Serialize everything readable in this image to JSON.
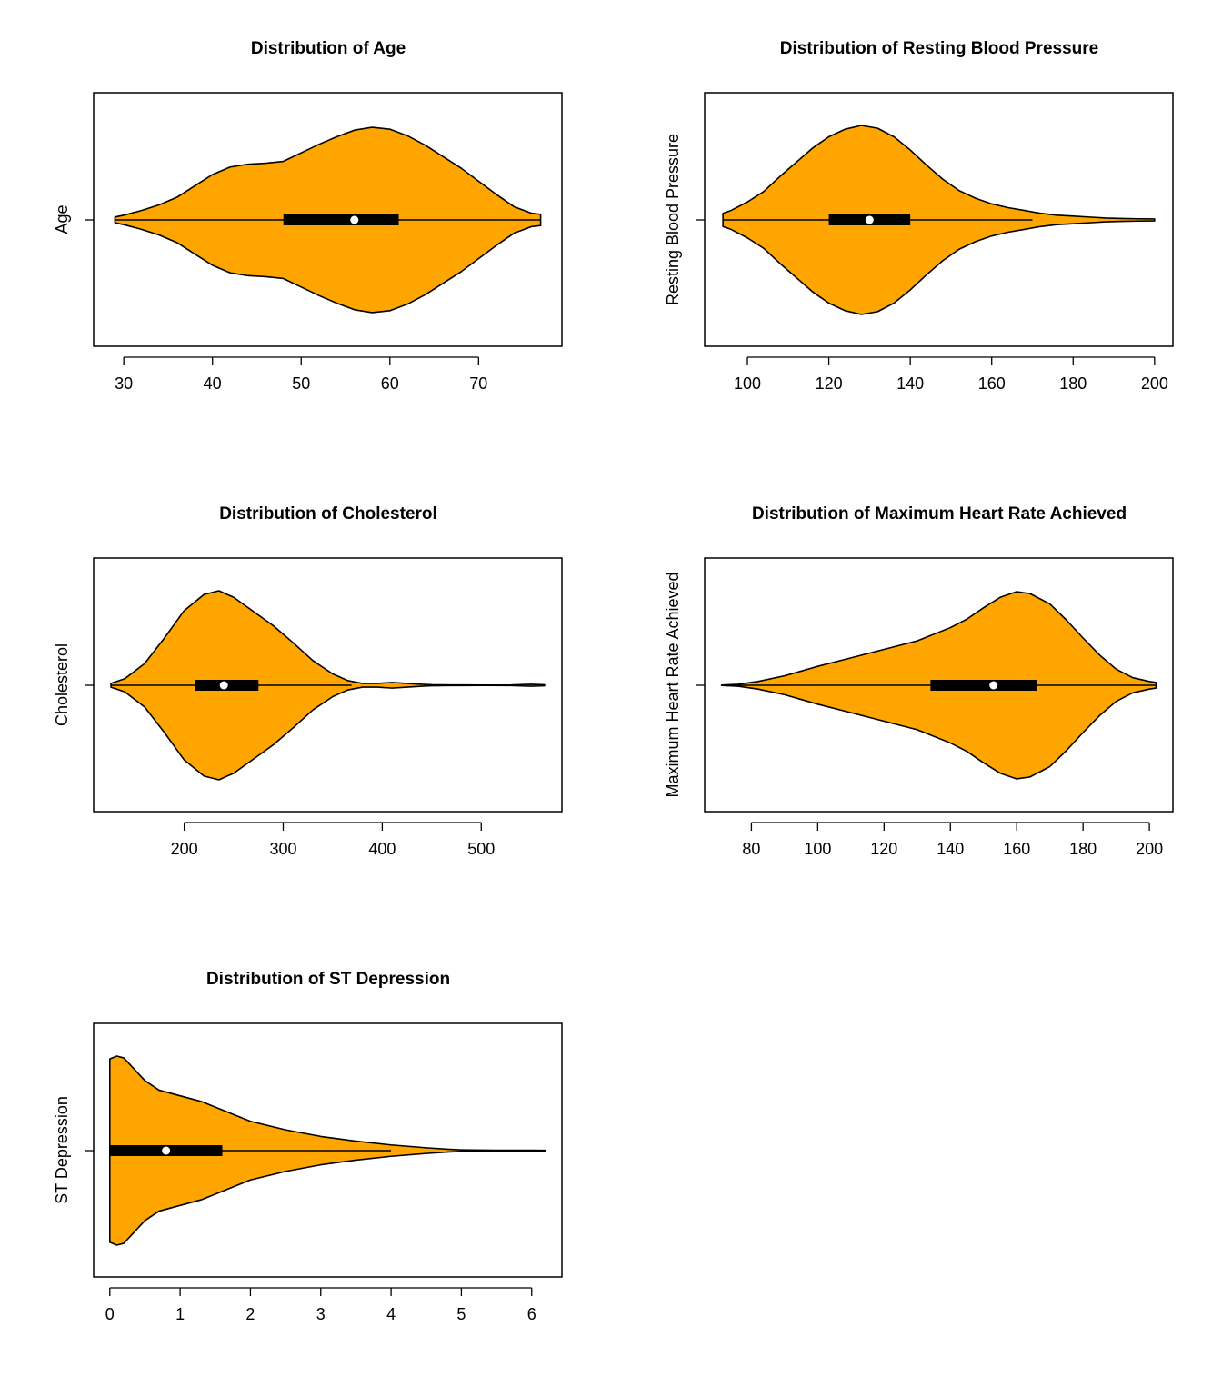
{
  "chart_data": [
    {
      "type": "violin",
      "title": "Distribution of Age",
      "xlabel": "",
      "ylabel": "Age",
      "fill_color": "#FFA500",
      "xlim": [
        26.6,
        79.4
      ],
      "ticks": [
        30,
        40,
        50,
        60,
        70
      ],
      "range": [
        29,
        77
      ],
      "box": {
        "q1": 48,
        "median": 56,
        "q3": 61
      },
      "whiskers": [
        29,
        77
      ],
      "density": [
        [
          29,
          0.03
        ],
        [
          30,
          0.05
        ],
        [
          32,
          0.1
        ],
        [
          34,
          0.16
        ],
        [
          36,
          0.24
        ],
        [
          38,
          0.36
        ],
        [
          40,
          0.48
        ],
        [
          42,
          0.56
        ],
        [
          44,
          0.59
        ],
        [
          46,
          0.6
        ],
        [
          48,
          0.62
        ],
        [
          50,
          0.71
        ],
        [
          52,
          0.8
        ],
        [
          54,
          0.88
        ],
        [
          56,
          0.95
        ],
        [
          58,
          0.98
        ],
        [
          60,
          0.96
        ],
        [
          62,
          0.89
        ],
        [
          64,
          0.79
        ],
        [
          66,
          0.67
        ],
        [
          68,
          0.55
        ],
        [
          70,
          0.41
        ],
        [
          72,
          0.27
        ],
        [
          74,
          0.14
        ],
        [
          76,
          0.07
        ],
        [
          77,
          0.06
        ]
      ]
    },
    {
      "type": "violin",
      "title": "Distribution of Resting Blood Pressure",
      "xlabel": "",
      "ylabel": "Resting Blood Pressure",
      "fill_color": "#FFA500",
      "xlim": [
        89.5,
        204.5
      ],
      "ticks": [
        100,
        120,
        140,
        160,
        180,
        200
      ],
      "range": [
        94,
        200
      ],
      "box": {
        "q1": 120,
        "median": 130,
        "q3": 140
      },
      "whiskers": [
        94,
        170
      ],
      "density": [
        [
          94,
          0.07
        ],
        [
          96,
          0.1
        ],
        [
          100,
          0.19
        ],
        [
          104,
          0.3
        ],
        [
          108,
          0.46
        ],
        [
          112,
          0.61
        ],
        [
          116,
          0.76
        ],
        [
          120,
          0.88
        ],
        [
          124,
          0.96
        ],
        [
          128,
          1.0
        ],
        [
          132,
          0.97
        ],
        [
          136,
          0.88
        ],
        [
          140,
          0.74
        ],
        [
          144,
          0.58
        ],
        [
          148,
          0.43
        ],
        [
          152,
          0.31
        ],
        [
          156,
          0.23
        ],
        [
          160,
          0.17
        ],
        [
          164,
          0.13
        ],
        [
          168,
          0.1
        ],
        [
          172,
          0.07
        ],
        [
          176,
          0.05
        ],
        [
          180,
          0.04
        ],
        [
          184,
          0.03
        ],
        [
          188,
          0.02
        ],
        [
          192,
          0.015
        ],
        [
          196,
          0.012
        ],
        [
          200,
          0.01
        ]
      ]
    },
    {
      "type": "violin",
      "title": "Distribution of Cholesterol",
      "xlabel": "",
      "ylabel": "Cholesterol",
      "fill_color": "#FFA500",
      "xlim": [
        108.5,
        581.5
      ],
      "ticks": [
        200,
        300,
        400,
        500
      ],
      "range": [
        126,
        564
      ],
      "box": {
        "q1": 211,
        "median": 240,
        "q3": 275
      },
      "whiskers": [
        126,
        369
      ],
      "density": [
        [
          126,
          0.02
        ],
        [
          140,
          0.07
        ],
        [
          160,
          0.23
        ],
        [
          180,
          0.5
        ],
        [
          200,
          0.79
        ],
        [
          220,
          0.96
        ],
        [
          235,
          1.0
        ],
        [
          250,
          0.93
        ],
        [
          270,
          0.78
        ],
        [
          290,
          0.63
        ],
        [
          310,
          0.45
        ],
        [
          330,
          0.26
        ],
        [
          350,
          0.12
        ],
        [
          365,
          0.05
        ],
        [
          380,
          0.02
        ],
        [
          395,
          0.02
        ],
        [
          410,
          0.03
        ],
        [
          425,
          0.02
        ],
        [
          440,
          0.01
        ],
        [
          450,
          0.005
        ],
        [
          470,
          0.003
        ],
        [
          500,
          0.002
        ],
        [
          530,
          0.003
        ],
        [
          550,
          0.01
        ],
        [
          564,
          0.005
        ]
      ]
    },
    {
      "type": "violin",
      "title": "Distribution of Maximum Heart Rate Achieved",
      "xlabel": "",
      "ylabel": "Maximum Heart Rate Achieved",
      "fill_color": "#FFA500",
      "xlim": [
        65.9,
        207.1
      ],
      "ticks": [
        80,
        100,
        120,
        140,
        160,
        180,
        200
      ],
      "range": [
        71,
        202
      ],
      "box": {
        "q1": 134,
        "median": 153,
        "q3": 166
      },
      "whiskers": [
        71,
        202
      ],
      "density": [
        [
          71,
          0.002
        ],
        [
          76,
          0.01
        ],
        [
          82,
          0.04
        ],
        [
          90,
          0.1
        ],
        [
          100,
          0.2
        ],
        [
          110,
          0.29
        ],
        [
          120,
          0.38
        ],
        [
          130,
          0.47
        ],
        [
          140,
          0.61
        ],
        [
          145,
          0.7
        ],
        [
          150,
          0.82
        ],
        [
          155,
          0.93
        ],
        [
          160,
          0.99
        ],
        [
          164,
          0.97
        ],
        [
          170,
          0.86
        ],
        [
          175,
          0.69
        ],
        [
          180,
          0.5
        ],
        [
          185,
          0.32
        ],
        [
          190,
          0.17
        ],
        [
          195,
          0.08
        ],
        [
          200,
          0.04
        ],
        [
          202,
          0.03
        ]
      ]
    },
    {
      "type": "violin",
      "title": "Distribution of ST Depression",
      "xlabel": "",
      "ylabel": "ST Depression",
      "fill_color": "#FFA500",
      "xlim": [
        -0.23,
        6.43
      ],
      "ticks": [
        0,
        1,
        2,
        3,
        4,
        5,
        6
      ],
      "range": [
        0,
        6.2
      ],
      "box": {
        "q1": 0,
        "median": 0.8,
        "q3": 1.6
      },
      "whiskers": [
        0,
        4
      ],
      "density": [
        [
          0,
          0.97
        ],
        [
          0.1,
          1.0
        ],
        [
          0.2,
          0.98
        ],
        [
          0.3,
          0.9
        ],
        [
          0.5,
          0.74
        ],
        [
          0.7,
          0.64
        ],
        [
          1.0,
          0.58
        ],
        [
          1.3,
          0.52
        ],
        [
          1.6,
          0.43
        ],
        [
          2.0,
          0.31
        ],
        [
          2.5,
          0.22
        ],
        [
          3.0,
          0.15
        ],
        [
          3.5,
          0.1
        ],
        [
          4.0,
          0.06
        ],
        [
          4.5,
          0.03
        ],
        [
          4.8,
          0.015
        ],
        [
          5.0,
          0.008
        ],
        [
          5.5,
          0.004
        ],
        [
          6.0,
          0.004
        ],
        [
          6.2,
          0.003
        ]
      ]
    }
  ]
}
